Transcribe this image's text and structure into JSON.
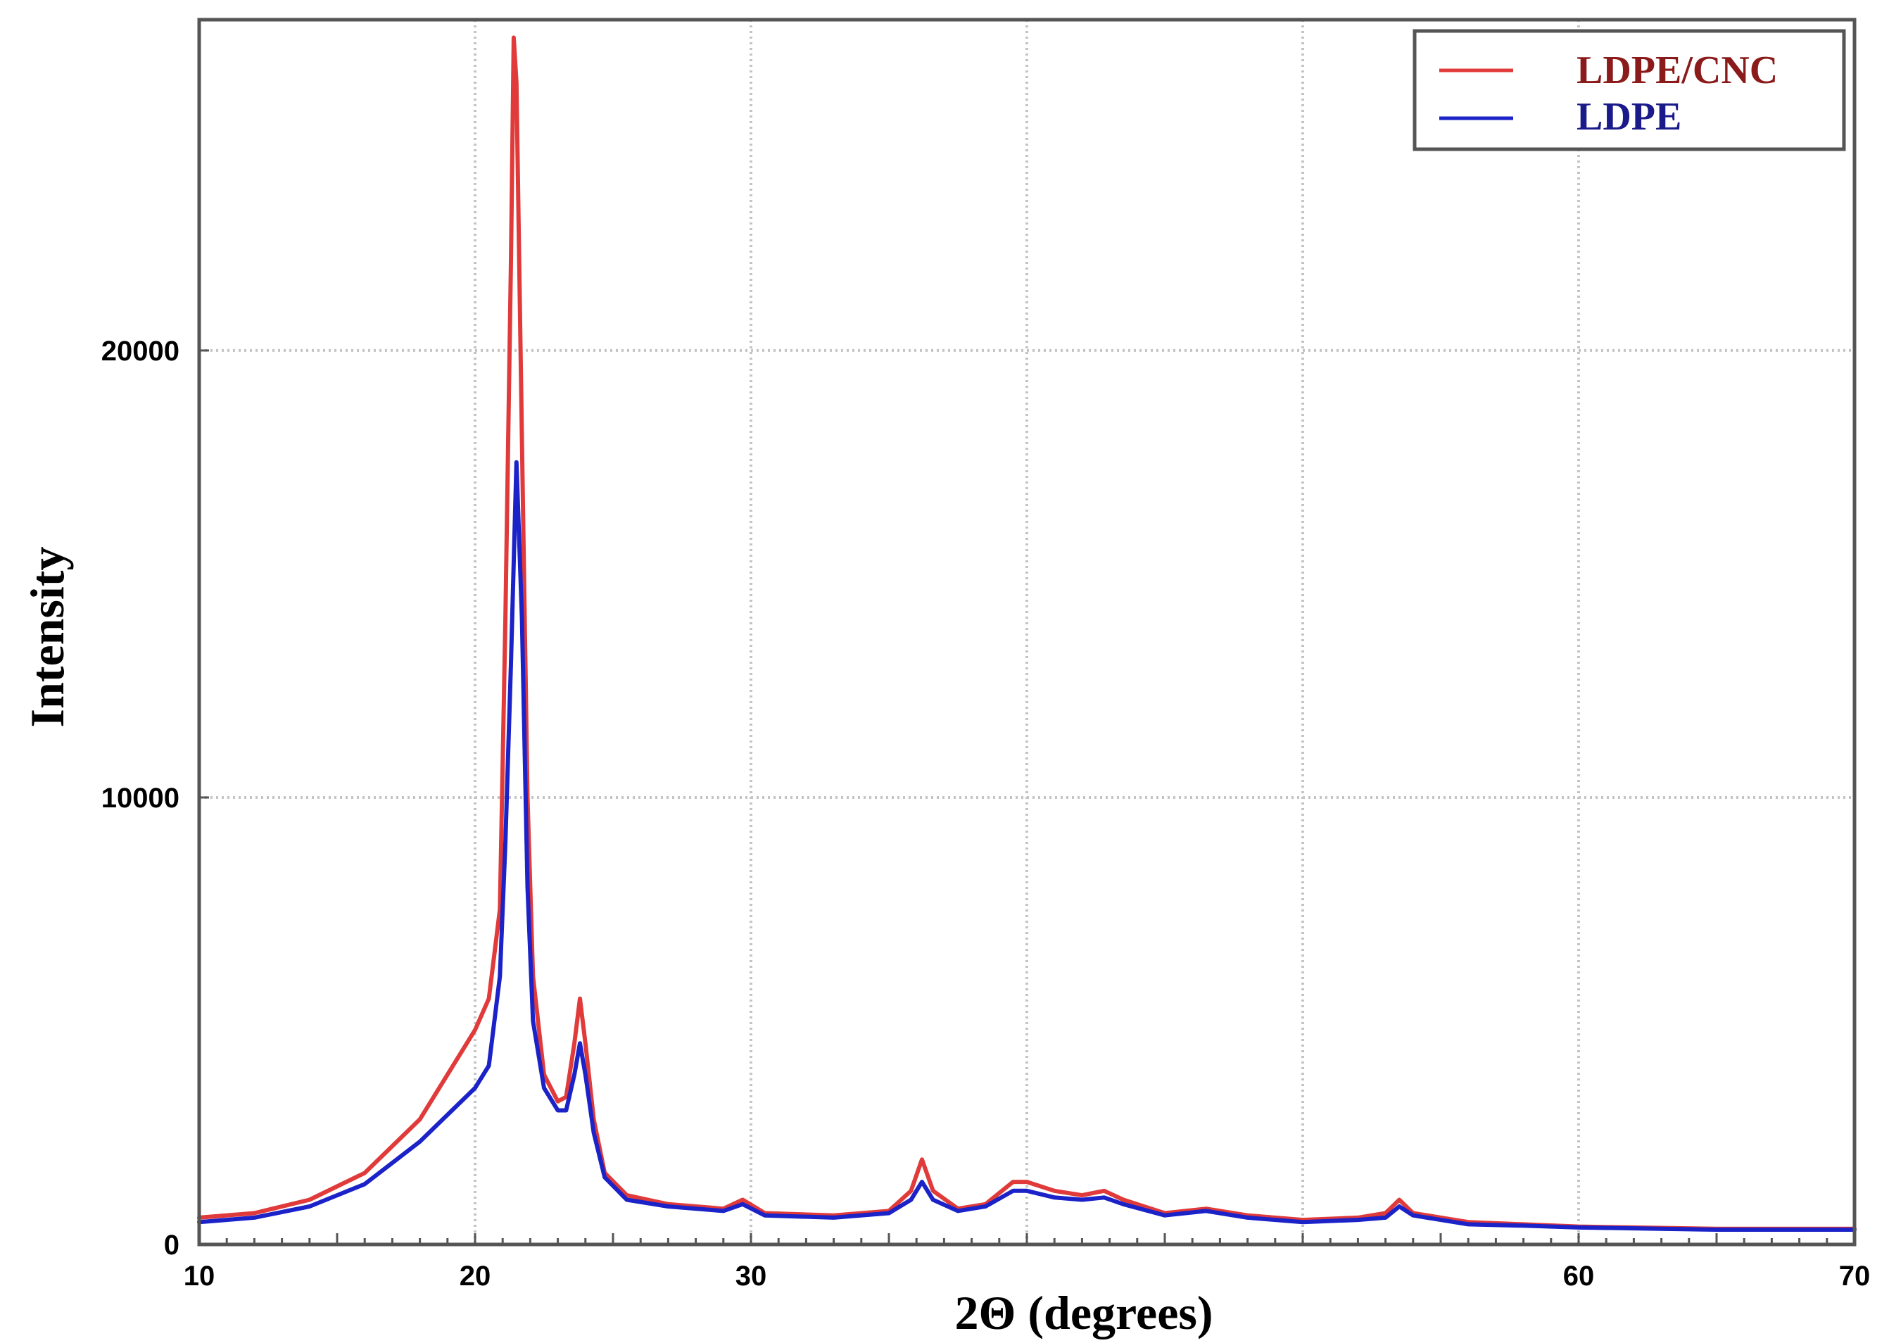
{
  "chart_data": {
    "type": "line",
    "title": "",
    "xlabel": "2Θ (degrees)",
    "ylabel": "Intensity",
    "xlim": [
      10,
      70
    ],
    "ylim": [
      0,
      27400
    ],
    "x_ticks": [
      10,
      20,
      30,
      60,
      70
    ],
    "x_tick_labels": [
      "10",
      "20",
      "30",
      "60",
      "70"
    ],
    "y_ticks": [
      0,
      10000,
      20000
    ],
    "y_tick_labels": [
      "0",
      "10000",
      "20000"
    ],
    "grid": true,
    "legend_position": "top-right",
    "series": [
      {
        "name": "LDPE/CNC",
        "color": "#e03a3a",
        "legend_color": "#8b1a1a",
        "points": [
          [
            10,
            600
          ],
          [
            12,
            700
          ],
          [
            14,
            1000
          ],
          [
            16,
            1600
          ],
          [
            18,
            2800
          ],
          [
            19,
            3800
          ],
          [
            20,
            4800
          ],
          [
            20.5,
            5500
          ],
          [
            20.9,
            7500
          ],
          [
            21.1,
            14000
          ],
          [
            21.3,
            22000
          ],
          [
            21.4,
            27000
          ],
          [
            21.5,
            26000
          ],
          [
            21.7,
            18000
          ],
          [
            21.9,
            10000
          ],
          [
            22.1,
            6000
          ],
          [
            22.5,
            3800
          ],
          [
            23,
            3200
          ],
          [
            23.3,
            3300
          ],
          [
            23.6,
            4500
          ],
          [
            23.8,
            5500
          ],
          [
            24,
            4500
          ],
          [
            24.3,
            2800
          ],
          [
            24.7,
            1600
          ],
          [
            25.5,
            1100
          ],
          [
            27,
            900
          ],
          [
            29,
            800
          ],
          [
            29.7,
            1000
          ],
          [
            30.5,
            700
          ],
          [
            33,
            650
          ],
          [
            35,
            750
          ],
          [
            35.8,
            1200
          ],
          [
            36.2,
            1900
          ],
          [
            36.6,
            1200
          ],
          [
            37.5,
            800
          ],
          [
            38.5,
            900
          ],
          [
            39.5,
            1400
          ],
          [
            40,
            1400
          ],
          [
            41,
            1200
          ],
          [
            42,
            1100
          ],
          [
            42.8,
            1200
          ],
          [
            43.5,
            1000
          ],
          [
            45,
            700
          ],
          [
            46.5,
            800
          ],
          [
            48,
            650
          ],
          [
            50,
            550
          ],
          [
            52,
            600
          ],
          [
            53,
            700
          ],
          [
            53.5,
            1000
          ],
          [
            54,
            700
          ],
          [
            56,
            500
          ],
          [
            58,
            450
          ],
          [
            60,
            400
          ],
          [
            62,
            380
          ],
          [
            65,
            350
          ],
          [
            70,
            350
          ]
        ]
      },
      {
        "name": "LDPE",
        "color": "#1a22c8",
        "legend_color": "#1a1a8b",
        "points": [
          [
            10,
            500
          ],
          [
            12,
            600
          ],
          [
            14,
            850
          ],
          [
            16,
            1350
          ],
          [
            18,
            2300
          ],
          [
            19,
            2900
          ],
          [
            20,
            3500
          ],
          [
            20.5,
            4000
          ],
          [
            20.9,
            6000
          ],
          [
            21.1,
            9000
          ],
          [
            21.3,
            13000
          ],
          [
            21.5,
            17500
          ],
          [
            21.7,
            14000
          ],
          [
            21.9,
            8000
          ],
          [
            22.1,
            5000
          ],
          [
            22.5,
            3500
          ],
          [
            23,
            3000
          ],
          [
            23.3,
            3000
          ],
          [
            23.6,
            3800
          ],
          [
            23.8,
            4500
          ],
          [
            24,
            3800
          ],
          [
            24.3,
            2500
          ],
          [
            24.7,
            1500
          ],
          [
            25.5,
            1000
          ],
          [
            27,
            850
          ],
          [
            29,
            750
          ],
          [
            29.7,
            900
          ],
          [
            30.5,
            650
          ],
          [
            33,
            600
          ],
          [
            35,
            700
          ],
          [
            35.8,
            1000
          ],
          [
            36.2,
            1400
          ],
          [
            36.6,
            1000
          ],
          [
            37.5,
            750
          ],
          [
            38.5,
            850
          ],
          [
            39.5,
            1200
          ],
          [
            40,
            1200
          ],
          [
            41,
            1050
          ],
          [
            42,
            1000
          ],
          [
            42.8,
            1050
          ],
          [
            43.5,
            900
          ],
          [
            45,
            650
          ],
          [
            46.5,
            750
          ],
          [
            48,
            600
          ],
          [
            50,
            500
          ],
          [
            52,
            550
          ],
          [
            53,
            600
          ],
          [
            53.5,
            850
          ],
          [
            54,
            650
          ],
          [
            56,
            450
          ],
          [
            58,
            420
          ],
          [
            60,
            380
          ],
          [
            62,
            360
          ],
          [
            65,
            330
          ],
          [
            70,
            330
          ]
        ]
      }
    ]
  }
}
